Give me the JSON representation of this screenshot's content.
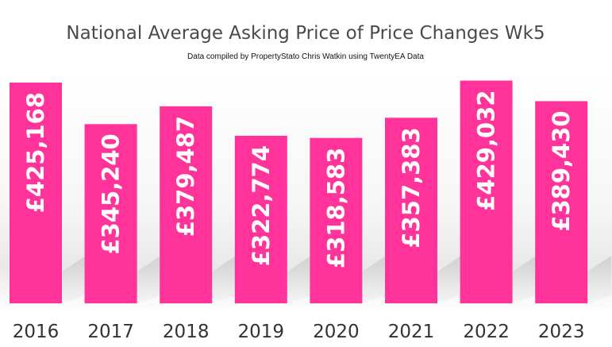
{
  "chart_data": {
    "type": "bar",
    "title": "National Average Asking Price of Price Changes Wk5",
    "subtitle": "Data compiled by PropertyStato Chris Watkin using TwentyEA Data",
    "categories": [
      "2016",
      "2017",
      "2018",
      "2019",
      "2020",
      "2021",
      "2022",
      "2023"
    ],
    "values": [
      425168,
      345240,
      379487,
      322774,
      318583,
      357383,
      429032,
      389430
    ],
    "data_labels": [
      "£425,168",
      "£345,240",
      "£379,487",
      "£322,774",
      "£318,583",
      "£357,383",
      "£429,032",
      "£389,430"
    ],
    "bar_color": "#ff3399",
    "xlabel": "",
    "ylabel": "",
    "ylim": [
      0,
      440000
    ],
    "grid": false,
    "legend": "none"
  }
}
